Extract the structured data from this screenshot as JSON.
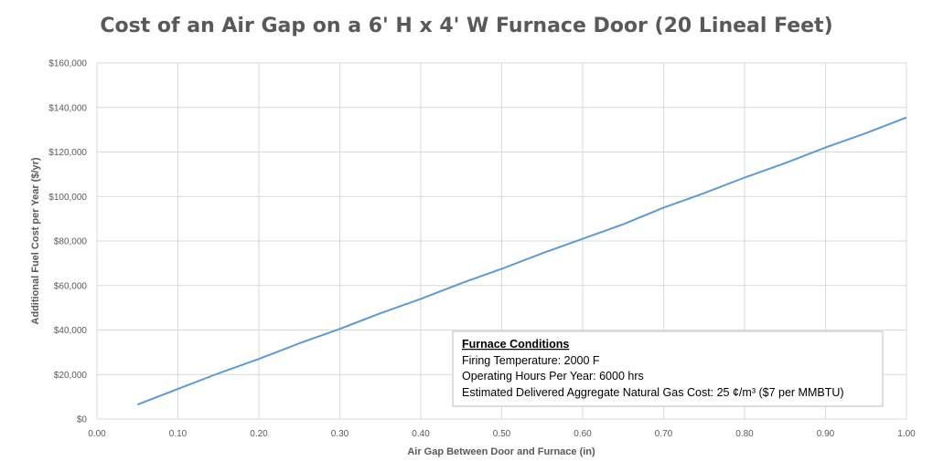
{
  "chart_data": {
    "type": "line",
    "title": "Cost of an Air Gap on a 6' H x 4' W Furnace Door (20 Lineal Feet)",
    "xlabel": "Air Gap Between Door and Furnace (in)",
    "ylabel": "Additional Fuel Cost per Year ($/yr)",
    "xlim": [
      0,
      1
    ],
    "ylim": [
      0,
      160000
    ],
    "x_ticks": [
      "0.00",
      "0.10",
      "0.20",
      "0.30",
      "0.40",
      "0.50",
      "0.60",
      "0.70",
      "0.80",
      "0.90",
      "1.00"
    ],
    "y_ticks": [
      "$0",
      "$20,000",
      "$40,000",
      "$60,000",
      "$80,000",
      "$100,000",
      "$120,000",
      "$140,000",
      "$160,000"
    ],
    "grid": true,
    "series": [
      {
        "color": "#5b9bd5",
        "x": [
          0.05,
          0.1,
          0.15,
          0.2,
          0.25,
          0.3,
          0.35,
          0.4,
          0.45,
          0.5,
          0.55,
          0.6,
          0.65,
          0.7,
          0.75,
          0.8,
          0.85,
          0.9,
          0.95,
          1.0
        ],
        "y": [
          6500,
          13500,
          20500,
          27000,
          34000,
          40500,
          47500,
          54000,
          61000,
          67500,
          74500,
          81000,
          87500,
          95000,
          101500,
          108500,
          115000,
          122000,
          128500,
          135500
        ]
      }
    ],
    "annotation": {
      "heading": "Furnace Conditions",
      "lines": [
        "Firing Temperature: 2000 F",
        "Operating Hours Per Year: 6000  hrs",
        "Estimated Delivered Aggregate Natural Gas Cost: 25 ¢/m³ ($7 per MMBTU)"
      ]
    }
  }
}
